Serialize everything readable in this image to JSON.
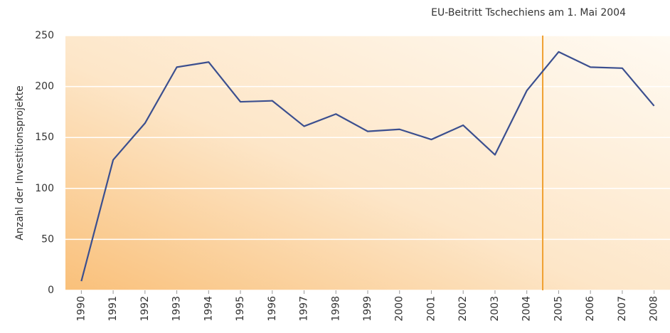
{
  "chart_data": {
    "type": "line",
    "ylabel": "Anzahl der Investitionsprojekte",
    "x": [
      1990,
      1991,
      1992,
      1993,
      1994,
      1995,
      1996,
      1997,
      1998,
      1999,
      2000,
      2001,
      2002,
      2003,
      2004,
      2005,
      2006,
      2007,
      2008
    ],
    "series": [
      {
        "color": "#3b4f8f",
        "values": [
          9,
          128,
          164,
          219,
          224,
          185,
          186,
          161,
          173,
          156,
          158,
          148,
          162,
          133,
          196,
          234,
          219,
          218,
          181
        ]
      }
    ],
    "xlim": [
      1989.5,
      2008.5
    ],
    "xticks": [
      1990,
      1991,
      1992,
      1993,
      1994,
      1995,
      1996,
      1997,
      1998,
      1999,
      2000,
      2001,
      2002,
      2003,
      2004,
      2005,
      2006,
      2007,
      2008
    ],
    "ylim": [
      0,
      250
    ],
    "yticks": [
      0,
      50,
      100,
      150,
      200,
      250
    ],
    "grid": true,
    "vline": {
      "x": 2004.5,
      "color": "#f0a030",
      "label": "EU-Beitritt Tschechiens am 1. Mai 2004"
    }
  }
}
